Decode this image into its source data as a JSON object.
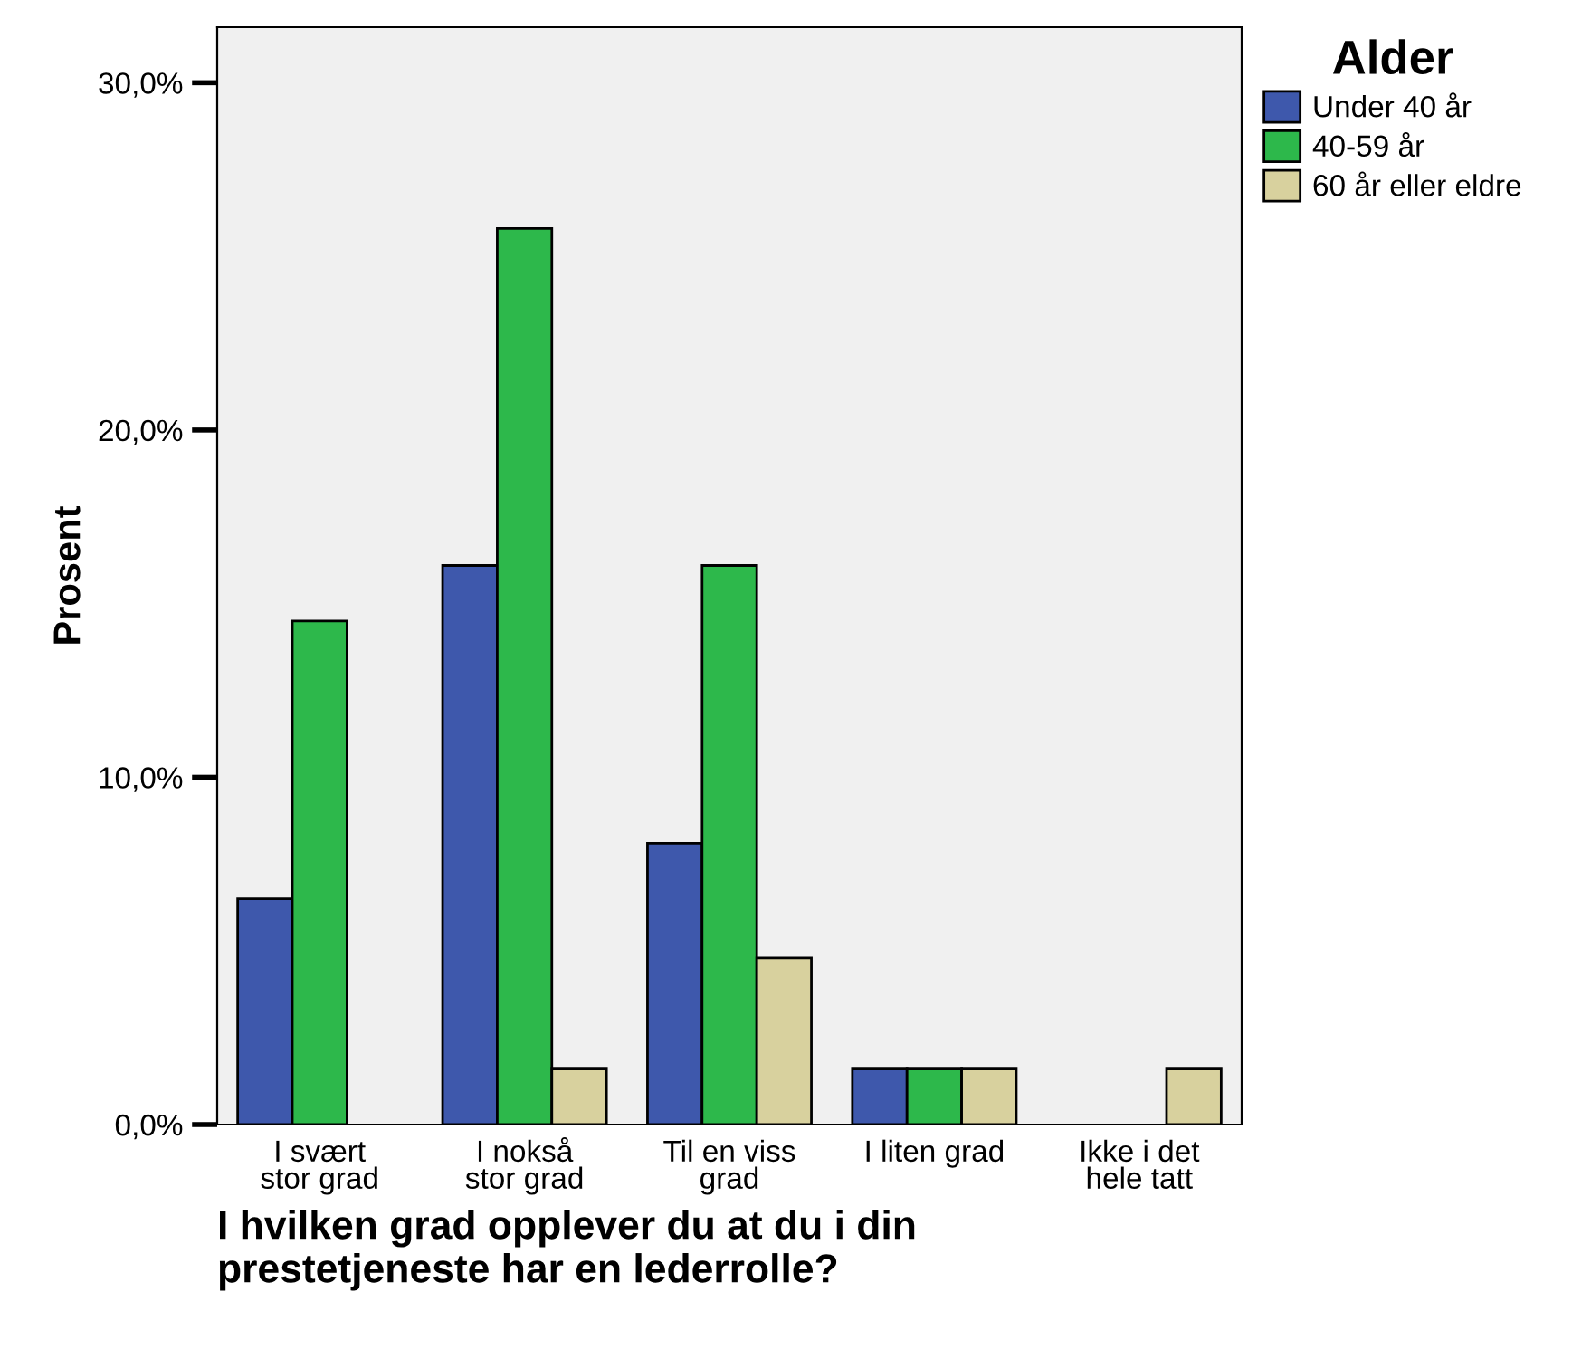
{
  "chart_data": {
    "type": "bar",
    "ylabel": "Prosent",
    "xlabel": "I hvilken grad opplever du at du i din\nprestetjeneste har en lederrolle?",
    "legend_title": "Alder",
    "categories": [
      "I svært\nstor grad",
      "I nokså\nstor grad",
      "Til en viss\ngrad",
      "I liten grad",
      "Ikke i det\nhele tatt"
    ],
    "series": [
      {
        "name": "Under 40 år",
        "color": "#3e58ac",
        "values": [
          6.5,
          16.1,
          8.1,
          1.6,
          0
        ]
      },
      {
        "name": "40-59 år",
        "color": "#2db84b",
        "values": [
          14.5,
          25.8,
          16.1,
          1.6,
          0
        ]
      },
      {
        "name": "60 år eller eldre",
        "color": "#d8d19e",
        "values": [
          0,
          1.6,
          4.8,
          1.6,
          1.6
        ]
      }
    ],
    "ylim": [
      0,
      31.6
    ],
    "yticks": [
      {
        "value": 0,
        "label": "0,0%"
      },
      {
        "value": 10,
        "label": "10,0%"
      },
      {
        "value": 20,
        "label": "20,0%"
      },
      {
        "value": 30,
        "label": "30,0%"
      }
    ],
    "grid": false,
    "legend": "top right"
  }
}
